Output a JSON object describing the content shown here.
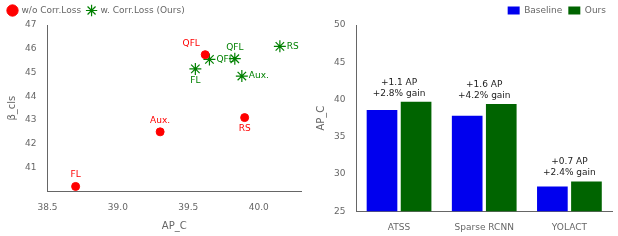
{
  "chart_data": [
    {
      "type": "scatter",
      "xlabel": "AP_C",
      "ylabel": "β_cls",
      "xlim": [
        38.5,
        40.3
      ],
      "ylim": [
        40.0,
        47.0
      ],
      "xticks": [
        38.5,
        {
          "value": 39.0,
          "label": "39.0"
        },
        39.5,
        {
          "value": 40.0,
          "label": "40.0"
        }
      ],
      "yticks": [
        41,
        42,
        43,
        44,
        45,
        46,
        47
      ],
      "grid": false,
      "legend": "upper left",
      "series": [
        {
          "name": "w/o Corr.Loss",
          "color": "red",
          "marker": "circle",
          "x": [
            38.7,
            39.3,
            39.62,
            39.9
          ],
          "values": [
            40.2,
            42.5,
            45.75,
            43.1
          ],
          "labels": [
            "FL",
            "Aux.",
            "QFL",
            "RS"
          ]
        },
        {
          "name": "w. Corr.Loss (Ours)",
          "color": "green",
          "marker": "star",
          "x": [
            39.55,
            39.65,
            39.83,
            39.88,
            40.15
          ],
          "values": [
            45.15,
            45.55,
            45.58,
            44.85,
            46.1
          ],
          "labels": [
            "FL",
            "QFL",
            "QFL",
            "Aux.",
            "RS"
          ]
        }
      ]
    },
    {
      "type": "bar",
      "ylabel": "AP_C",
      "categories": [
        "ATSS",
        "Sparse RCNN",
        "YOLACT"
      ],
      "ylim": [
        25,
        50
      ],
      "yticks": [
        25,
        30,
        35,
        40,
        45,
        50
      ],
      "grid": false,
      "legend": "upper right",
      "series": [
        {
          "name": "Baseline",
          "color": "#0000ee",
          "values": [
            38.6,
            37.8,
            28.3
          ]
        },
        {
          "name": "Ours",
          "color": "#006400",
          "values": [
            39.7,
            39.4,
            29.0
          ]
        }
      ],
      "annotations": [
        {
          "category": "ATSS",
          "text": "+1.1 AP\n+2.8% gain"
        },
        {
          "category": "Sparse RCNN",
          "text": "+1.6 AP\n+4.2% gain"
        },
        {
          "category": "YOLACT",
          "text": "+0.7 AP\n+2.4% gain"
        }
      ]
    }
  ]
}
